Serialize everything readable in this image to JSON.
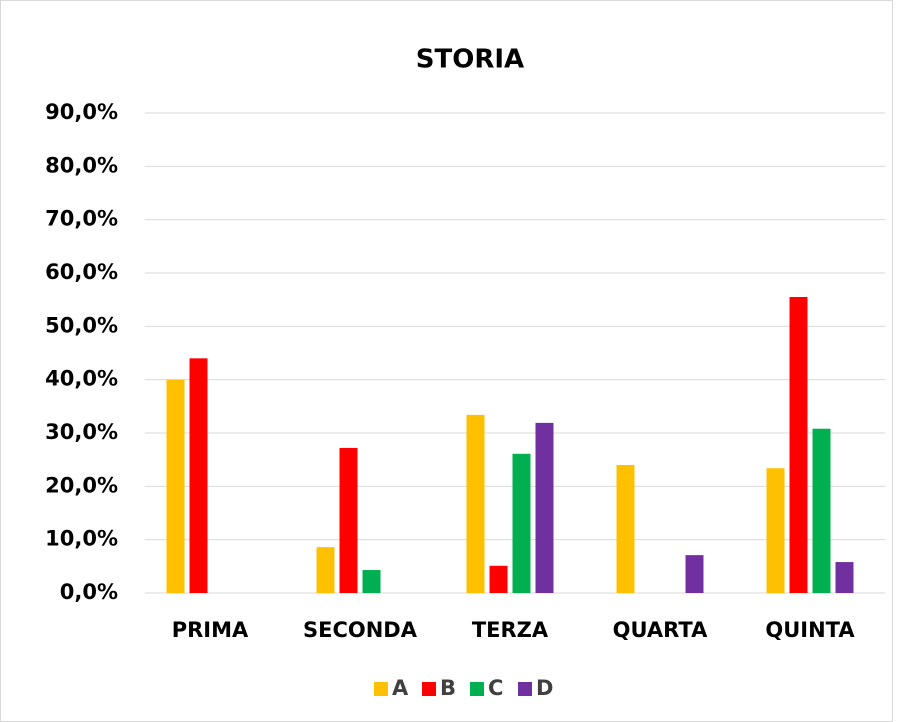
{
  "chart_data": {
    "type": "bar",
    "title": "STORIA",
    "categories": [
      "PRIMA",
      "SECONDA",
      "TERZA",
      "QUARTA",
      "QUINTA"
    ],
    "series": [
      {
        "name": "A",
        "color": "#FFC000",
        "values": [
          40.0,
          8.6,
          33.4,
          24.0,
          23.4
        ]
      },
      {
        "name": "B",
        "color": "#FF0000",
        "values": [
          44.0,
          27.2,
          5.1,
          0,
          55.5
        ]
      },
      {
        "name": "C",
        "color": "#00B050",
        "values": [
          0,
          4.3,
          26.1,
          0,
          30.8
        ]
      },
      {
        "name": "D",
        "color": "#7030A0",
        "values": [
          0,
          0,
          31.9,
          7.1,
          5.8
        ]
      }
    ],
    "ylim": [
      0,
      90
    ],
    "yticks": [
      {
        "value": 0,
        "label": "0,0%"
      },
      {
        "value": 10,
        "label": "10,0%"
      },
      {
        "value": 20,
        "label": "20,0%"
      },
      {
        "value": 30,
        "label": "30,0%"
      },
      {
        "value": 40,
        "label": "40,0%"
      },
      {
        "value": 50,
        "label": "50,0%"
      },
      {
        "value": 60,
        "label": "60,0%"
      },
      {
        "value": 70,
        "label": "70,0%"
      },
      {
        "value": 80,
        "label": "80,0%"
      },
      {
        "value": 90,
        "label": "90,0%"
      }
    ],
    "grid": true,
    "legend": "bottom"
  }
}
